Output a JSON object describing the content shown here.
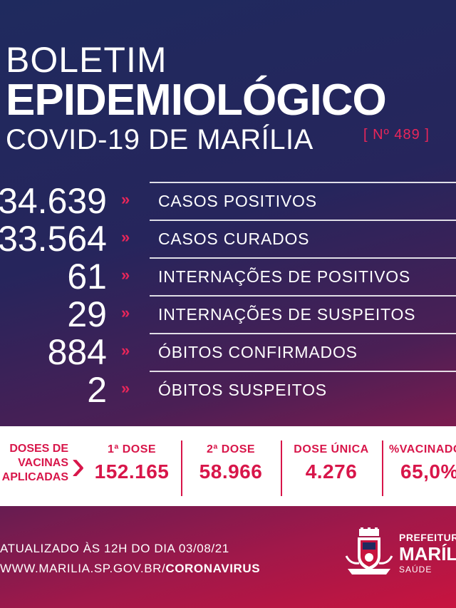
{
  "header": {
    "line1": "BOLETIM",
    "line2": "EPIDEMIOLÓGICO",
    "line3": "COVID-19 DE MARÍLIA",
    "bulletin_number": "[ Nº 489 ]"
  },
  "stats": [
    {
      "value": "34.639",
      "label": "CASOS POSITIVOS"
    },
    {
      "value": "33.564",
      "label": "CASOS CURADOS"
    },
    {
      "value": "61",
      "label": "INTERNAÇÕES DE POSITIVOS"
    },
    {
      "value": "29",
      "label": "INTERNAÇÕES DE SUSPEITOS"
    },
    {
      "value": "884",
      "label": "ÓBITOS CONFIRMADOS"
    },
    {
      "value": "2",
      "label": "ÓBITOS SUSPEITOS"
    }
  ],
  "stat_arrow": "»",
  "vaccination": {
    "heading": [
      "DOSES DE",
      "VACINAS",
      "APLICADAS"
    ],
    "columns": [
      {
        "label": "1ª DOSE",
        "value": "152.165"
      },
      {
        "label": "2ª DOSE",
        "value": "58.966"
      },
      {
        "label": "DOSE ÚNICA",
        "value": "4.276"
      },
      {
        "label": "%VACINADOS",
        "value": "65,0%"
      }
    ]
  },
  "footer": {
    "updated": "ATUALIZADO ÀS 12H DO DIA 03/08/21",
    "url_prefix": "WWW.MARILIA.SP.GOV.BR/",
    "url_bold": "CORONAVIRUS"
  },
  "org": {
    "line1": "PREFEITURA",
    "line2": "MARÍLIA",
    "line3": "SAÚDE"
  },
  "colors": {
    "accent": "#e8265a",
    "bg_top": "#1f2a5e",
    "bg_bottom": "#c8143f",
    "panel": "#ffffff"
  }
}
